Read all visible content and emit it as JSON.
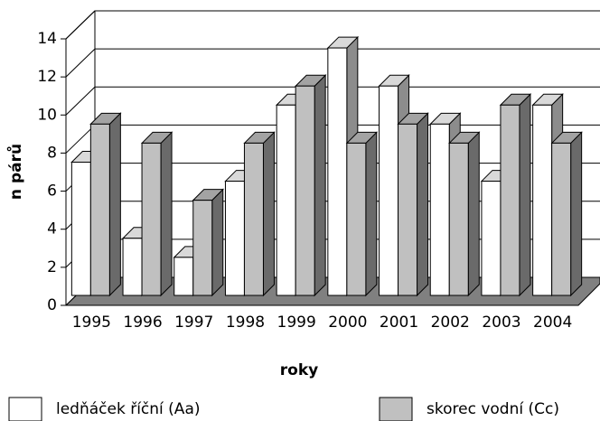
{
  "chart_data": {
    "type": "bar3d",
    "x_label": "roky",
    "y_label": "n párů",
    "categories": [
      "1995",
      "1996",
      "1997",
      "1998",
      "1999",
      "2000",
      "2001",
      "2002",
      "2003",
      "2004"
    ],
    "series": [
      {
        "name": "ledňáček říční (Aa)",
        "color": "#ffffff",
        "values": [
          7,
          3,
          2,
          6,
          10,
          13,
          11,
          9,
          6,
          10
        ]
      },
      {
        "name": "skorec vodní (Cc)",
        "color": "#c0c0c0",
        "values": [
          9,
          8,
          5,
          8,
          11,
          8,
          9,
          8,
          10,
          8
        ]
      }
    ],
    "ylim": [
      0,
      14
    ],
    "yticks": [
      0,
      2,
      4,
      6,
      8,
      10,
      12,
      14
    ],
    "grid": true,
    "legend": "bottom"
  }
}
